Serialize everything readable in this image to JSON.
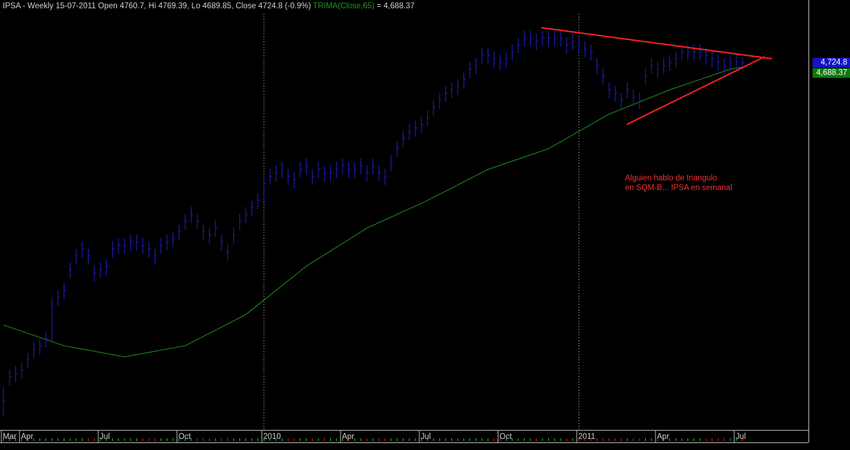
{
  "chart_data": {
    "type": "ohlc",
    "title": "IPSA - Weekly 15-07-2011 Open 4760.7, Hi 4769.39, Lo 4689.85, Close 4724.8 (-0.9%)",
    "color": "#1c1cb0",
    "ylim": [
      1750,
      5120
    ],
    "categories": [
      "Mar",
      null,
      null,
      "Apr",
      null,
      null,
      null,
      null,
      null,
      null,
      null,
      null,
      null,
      null,
      null,
      null,
      "Jul",
      null,
      null,
      null,
      null,
      null,
      null,
      null,
      null,
      null,
      null,
      null,
      null,
      "Oct",
      null,
      null,
      null,
      null,
      null,
      null,
      null,
      null,
      null,
      null,
      null,
      null,
      null,
      "2010",
      null,
      null,
      null,
      null,
      null,
      null,
      null,
      null,
      null,
      null,
      null,
      null,
      "Apr",
      null,
      null,
      null,
      null,
      null,
      null,
      null,
      null,
      null,
      null,
      null,
      null,
      "Jul",
      null,
      null,
      null,
      null,
      null,
      null,
      null,
      null,
      null,
      null,
      null,
      null,
      "Oct",
      null,
      null,
      null,
      null,
      null,
      null,
      null,
      null,
      null,
      null,
      null,
      null,
      "2011",
      null,
      null,
      null,
      null,
      null,
      null,
      null,
      null,
      null,
      null,
      null,
      null,
      "Apr",
      null,
      null,
      null,
      null,
      null,
      null,
      null,
      null,
      null,
      null,
      null,
      null,
      "Jul",
      null
    ],
    "high": [
      2100,
      2240,
      2268,
      2296,
      2380,
      2464,
      2492,
      2548,
      2828,
      2884,
      2940,
      3108,
      3220,
      3276,
      3220,
      3080,
      3108,
      3136,
      3276,
      3304,
      3304,
      3332,
      3332,
      3304,
      3276,
      3220,
      3304,
      3332,
      3360,
      3416,
      3500,
      3556,
      3500,
      3416,
      3388,
      3444,
      3332,
      3248,
      3388,
      3500,
      3556,
      3612,
      3668,
      3808,
      3864,
      3892,
      3920,
      3864,
      3836,
      3920,
      3948,
      3864,
      3920,
      3892,
      3892,
      3920,
      3948,
      3920,
      3920,
      3948,
      3892,
      3948,
      3892,
      3864,
      3976,
      4088,
      4172,
      4228,
      4256,
      4284,
      4340,
      4424,
      4480,
      4536,
      4564,
      4592,
      4648,
      4732,
      4760,
      4844,
      4844,
      4816,
      4788,
      4816,
      4872,
      4928,
      4984,
      4984,
      4956,
      4984,
      4984,
      4984,
      4984,
      4928,
      4956,
      4928,
      4900,
      4872,
      4760,
      4676,
      4564,
      4536,
      4480,
      4564,
      4508,
      4480,
      4676,
      4760,
      4732,
      4760,
      4788,
      4816,
      4872,
      4872,
      4872,
      4872,
      4844,
      4816,
      4788,
      4760,
      4788,
      4788,
      4769.39
    ],
    "low": [
      1860,
      2110,
      2138,
      2166,
      2250,
      2334,
      2362,
      2418,
      2460,
      2754,
      2810,
      2978,
      3090,
      3146,
      3090,
      2950,
      2978,
      3006,
      3146,
      3174,
      3174,
      3202,
      3202,
      3174,
      3146,
      3090,
      3174,
      3202,
      3230,
      3286,
      3370,
      3426,
      3370,
      3286,
      3258,
      3314,
      3202,
      3118,
      3258,
      3370,
      3426,
      3482,
      3538,
      3600,
      3734,
      3762,
      3790,
      3734,
      3706,
      3790,
      3818,
      3734,
      3790,
      3762,
      3762,
      3790,
      3818,
      3790,
      3790,
      3818,
      3762,
      3818,
      3762,
      3734,
      3846,
      3958,
      4042,
      4098,
      4126,
      4154,
      4210,
      4294,
      4350,
      4406,
      4434,
      4462,
      4518,
      4602,
      4630,
      4714,
      4714,
      4686,
      4658,
      4686,
      4742,
      4798,
      4854,
      4854,
      4826,
      4854,
      4854,
      4854,
      4854,
      4798,
      4826,
      4798,
      4770,
      4742,
      4630,
      4546,
      4434,
      4406,
      4350,
      4434,
      4378,
      4350,
      4546,
      4630,
      4602,
      4630,
      4658,
      4686,
      4742,
      4742,
      4742,
      4742,
      4714,
      4686,
      4658,
      4630,
      4658,
      4658,
      4689.85
    ],
    "close": [
      1984,
      2180,
      2208,
      2236,
      2320,
      2404,
      2432,
      2488,
      2768,
      2824,
      2880,
      3048,
      3160,
      3216,
      3160,
      3020,
      3048,
      3076,
      3216,
      3244,
      3244,
      3272,
      3272,
      3244,
      3216,
      3160,
      3244,
      3272,
      3300,
      3356,
      3440,
      3496,
      3440,
      3356,
      3328,
      3384,
      3272,
      3188,
      3328,
      3440,
      3496,
      3552,
      3608,
      3748,
      3804,
      3832,
      3860,
      3804,
      3776,
      3860,
      3888,
      3804,
      3860,
      3832,
      3832,
      3860,
      3888,
      3860,
      3860,
      3888,
      3832,
      3888,
      3832,
      3804,
      3916,
      4028,
      4112,
      4168,
      4196,
      4224,
      4280,
      4364,
      4420,
      4476,
      4504,
      4532,
      4588,
      4672,
      4700,
      4784,
      4784,
      4756,
      4728,
      4756,
      4812,
      4868,
      4924,
      4924,
      4896,
      4924,
      4924,
      4924,
      4924,
      4868,
      4896,
      4868,
      4840,
      4812,
      4700,
      4616,
      4504,
      4476,
      4420,
      4504,
      4448,
      4420,
      4616,
      4700,
      4672,
      4700,
      4728,
      4756,
      4812,
      4812,
      4812,
      4812,
      4784,
      4756,
      4728,
      4700,
      4728,
      4728,
      4724.8
    ],
    "trima": {
      "name": "TRIMA(Close,65)",
      "label": "= 4,688.37",
      "color": "#1f9a1f",
      "x": [
        0,
        10,
        20,
        30,
        40,
        50,
        60,
        70,
        80,
        90,
        100,
        110,
        120,
        122
      ],
      "values": [
        2600,
        2432,
        2342,
        2432,
        2684,
        3076,
        3384,
        3608,
        3860,
        4028,
        4308,
        4504,
        4672,
        4688.37
      ]
    },
    "trendlines": {
      "color": "#ff2222",
      "lines": [
        {
          "x": [
            88.8,
            126.9
          ],
          "values": [
            5008,
            4756
          ]
        },
        {
          "x": [
            102.9,
            125.7
          ],
          "values": [
            4224,
            4773
          ]
        }
      ]
    },
    "annotation": [
      "Alguien hablo de triangulo",
      "en SQM-B... IPSA en semanal"
    ],
    "price_labels": [
      {
        "value": 4724.8,
        "label": "4,724.8",
        "color": "#1414c8"
      },
      {
        "value": 4688.37,
        "label": "4,688.37",
        "color": "#0c7a0c"
      }
    ]
  }
}
